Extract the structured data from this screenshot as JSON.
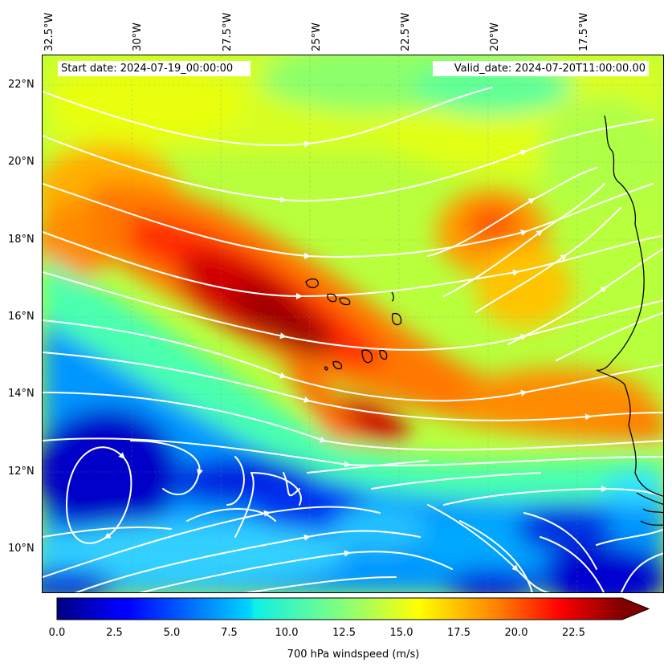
{
  "map": {
    "start_label": "Start date: 2024-07-19_00:00:00",
    "valid_label": "Valid_date: 2024-07-20T11:00:00.00",
    "lon_ticks": [
      "32.5°W",
      "30°W",
      "27.5°W",
      "25°W",
      "22.5°W",
      "20°W",
      "17.5°W"
    ],
    "lat_ticks": [
      "22°N",
      "20°N",
      "18°N",
      "16°N",
      "14°N",
      "12°N",
      "10°N"
    ],
    "lon_range": [
      -32.5,
      -15.0
    ],
    "lat_range": [
      8.9,
      22.8
    ],
    "lon_values": [
      -32.5,
      -30,
      -27.5,
      -25,
      -22.5,
      -20,
      -17.5
    ],
    "lat_values": [
      22,
      20,
      18,
      16,
      14,
      12,
      10
    ],
    "grid": true,
    "overlay": "streamlines",
    "streamline_color": "#ffffff",
    "coastline_color": "#000000"
  },
  "colorbar": {
    "label": "700 hPa windspeed (m/s)",
    "ticks": [
      "0.0",
      "2.5",
      "5.0",
      "7.5",
      "10.0",
      "12.5",
      "15.0",
      "17.5",
      "20.0",
      "22.5"
    ],
    "range": [
      0,
      25
    ],
    "extend": "max",
    "colormap": "jet"
  }
}
